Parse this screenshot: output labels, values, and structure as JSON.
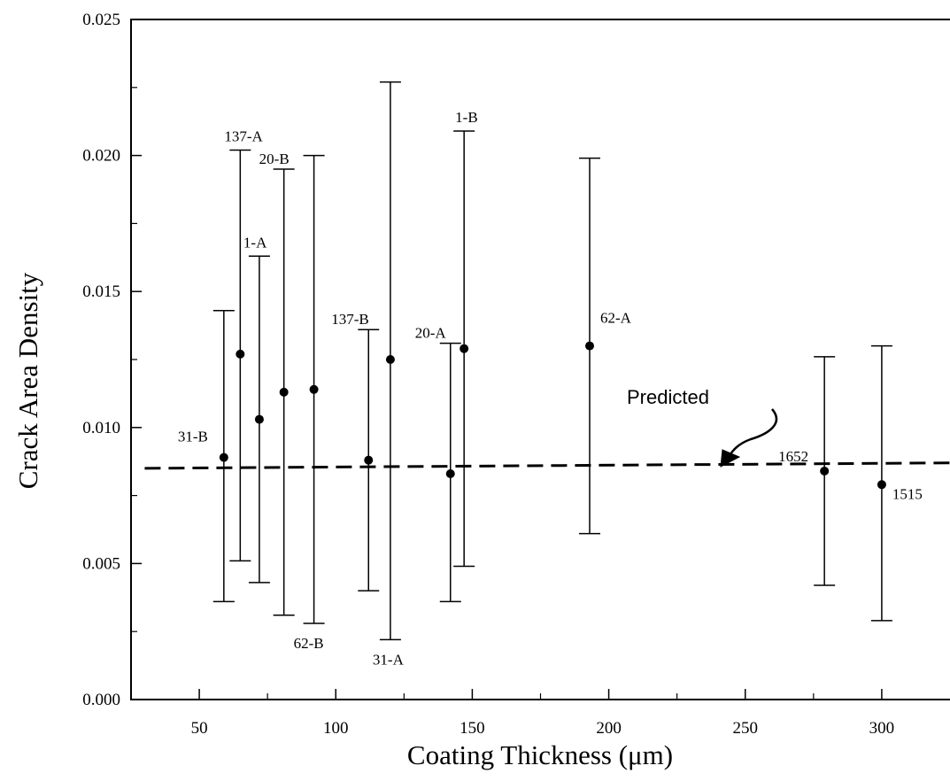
{
  "chart_data": {
    "type": "scatter",
    "xlabel": "Coating Thickness (μm)",
    "ylabel": "Crack Area Density",
    "xlim": [
      25,
      325
    ],
    "ylim": [
      0,
      0.025
    ],
    "x_ticks": [
      50,
      100,
      150,
      200,
      250,
      300
    ],
    "x_tick_labels": [
      "50",
      "100",
      "150",
      "200",
      "250",
      "300"
    ],
    "y_ticks": [
      0,
      0.005,
      0.01,
      0.015,
      0.02,
      0.025
    ],
    "y_tick_labels": [
      "0.000",
      "0.005",
      "0.010",
      "0.015",
      "0.020",
      "0.025"
    ],
    "grid": false,
    "points": [
      {
        "label": "31-B",
        "x": 59,
        "y": 0.0089,
        "err_low": 0.0036,
        "err_high": 0.0143
      },
      {
        "label": "137-A",
        "x": 65,
        "y": 0.0127,
        "err_low": 0.0051,
        "err_high": 0.0202
      },
      {
        "label": "1-A",
        "x": 72,
        "y": 0.0103,
        "err_low": 0.0043,
        "err_high": 0.0163
      },
      {
        "label": "20-B",
        "x": 81,
        "y": 0.0113,
        "err_low": 0.0031,
        "err_high": 0.0195
      },
      {
        "label": "62-B",
        "x": 92,
        "y": 0.0114,
        "err_low": 0.0028,
        "err_high": 0.02
      },
      {
        "label": "137-B",
        "x": 112,
        "y": 0.0088,
        "err_low": 0.004,
        "err_high": 0.0136
      },
      {
        "label": "31-A",
        "x": 120,
        "y": 0.0125,
        "err_low": 0.0022,
        "err_high": 0.0227
      },
      {
        "label": "20-A",
        "x": 142,
        "y": 0.0083,
        "err_low": 0.0036,
        "err_high": 0.0131
      },
      {
        "label": "1-B",
        "x": 147,
        "y": 0.0129,
        "err_low": 0.0049,
        "err_high": 0.0209
      },
      {
        "label": "62-A",
        "x": 193,
        "y": 0.013,
        "err_low": 0.0061,
        "err_high": 0.0199
      },
      {
        "label": "1652",
        "x": 279,
        "y": 0.0084,
        "err_low": 0.0042,
        "err_high": 0.0126
      },
      {
        "label": "1515",
        "x": 300,
        "y": 0.0079,
        "err_low": 0.0029,
        "err_high": 0.013
      }
    ],
    "predicted_line": {
      "label": "Predicted",
      "x": [
        30,
        325
      ],
      "y": [
        0.0085,
        0.0087
      ]
    }
  }
}
